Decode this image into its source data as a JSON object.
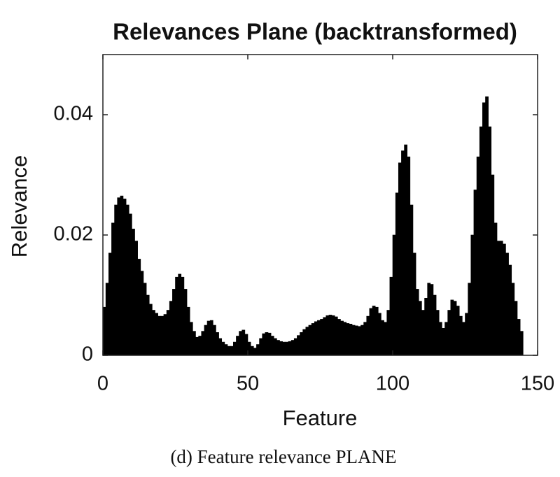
{
  "chart_data": {
    "type": "bar",
    "title": "Relevances Plane (backtransformed)",
    "x_label": "Feature",
    "y_label": "Relevance",
    "caption": "(d) Feature relevance PLANE",
    "color": "#000000",
    "xlim": [
      0,
      150
    ],
    "xticks": [
      0,
      50,
      100,
      150
    ],
    "ylim": [
      0,
      0.05
    ],
    "yticks": [
      0,
      0.02,
      0.04
    ],
    "x": [
      1,
      2,
      3,
      4,
      5,
      6,
      7,
      8,
      9,
      10,
      11,
      12,
      13,
      14,
      15,
      16,
      17,
      18,
      19,
      20,
      21,
      22,
      23,
      24,
      25,
      26,
      27,
      28,
      29,
      30,
      31,
      32,
      33,
      34,
      35,
      36,
      37,
      38,
      39,
      40,
      41,
      42,
      43,
      44,
      45,
      46,
      47,
      48,
      49,
      50,
      51,
      52,
      53,
      54,
      55,
      56,
      57,
      58,
      59,
      60,
      61,
      62,
      63,
      64,
      65,
      66,
      67,
      68,
      69,
      70,
      71,
      72,
      73,
      74,
      75,
      76,
      77,
      78,
      79,
      80,
      81,
      82,
      83,
      84,
      85,
      86,
      87,
      88,
      89,
      90,
      91,
      92,
      93,
      94,
      95,
      96,
      97,
      98,
      99,
      100,
      101,
      102,
      103,
      104,
      105,
      106,
      107,
      108,
      109,
      110,
      111,
      112,
      113,
      114,
      115,
      116,
      117,
      118,
      119,
      120,
      121,
      122,
      123,
      124,
      125,
      126,
      127,
      128,
      129,
      130,
      131,
      132,
      133,
      134,
      135,
      136,
      137,
      138,
      139,
      140,
      141,
      142,
      143,
      144,
      145
    ],
    "values": [
      0.008,
      0.012,
      0.017,
      0.022,
      0.025,
      0.0262,
      0.0265,
      0.026,
      0.025,
      0.0235,
      0.021,
      0.019,
      0.016,
      0.014,
      0.012,
      0.01,
      0.0085,
      0.0075,
      0.007,
      0.0065,
      0.0065,
      0.0068,
      0.0075,
      0.009,
      0.011,
      0.013,
      0.0135,
      0.013,
      0.011,
      0.008,
      0.0055,
      0.004,
      0.003,
      0.0032,
      0.004,
      0.005,
      0.0057,
      0.0058,
      0.005,
      0.0038,
      0.0028,
      0.0022,
      0.0018,
      0.0015,
      0.0015,
      0.0022,
      0.0032,
      0.004,
      0.0042,
      0.0035,
      0.0022,
      0.0015,
      0.0012,
      0.0018,
      0.0028,
      0.0036,
      0.0038,
      0.0037,
      0.0032,
      0.0028,
      0.0025,
      0.0023,
      0.0022,
      0.0022,
      0.0023,
      0.0025,
      0.0028,
      0.0033,
      0.0038,
      0.0043,
      0.0047,
      0.005,
      0.0053,
      0.0056,
      0.0058,
      0.006,
      0.0063,
      0.0066,
      0.0067,
      0.0066,
      0.0064,
      0.006,
      0.0057,
      0.0055,
      0.0053,
      0.0052,
      0.005,
      0.0049,
      0.0048,
      0.005,
      0.0055,
      0.0065,
      0.0078,
      0.0082,
      0.008,
      0.007,
      0.0058,
      0.0055,
      0.0075,
      0.013,
      0.02,
      0.027,
      0.032,
      0.034,
      0.035,
      0.033,
      0.025,
      0.017,
      0.011,
      0.009,
      0.0075,
      0.0095,
      0.012,
      0.0118,
      0.01,
      0.0075,
      0.0055,
      0.0045,
      0.0055,
      0.0075,
      0.0092,
      0.009,
      0.0082,
      0.0065,
      0.0055,
      0.007,
      0.012,
      0.02,
      0.0275,
      0.033,
      0.038,
      0.042,
      0.043,
      0.038,
      0.03,
      0.022,
      0.019,
      0.019,
      0.0185,
      0.017,
      0.015,
      0.012,
      0.009,
      0.006,
      0.004
    ]
  }
}
